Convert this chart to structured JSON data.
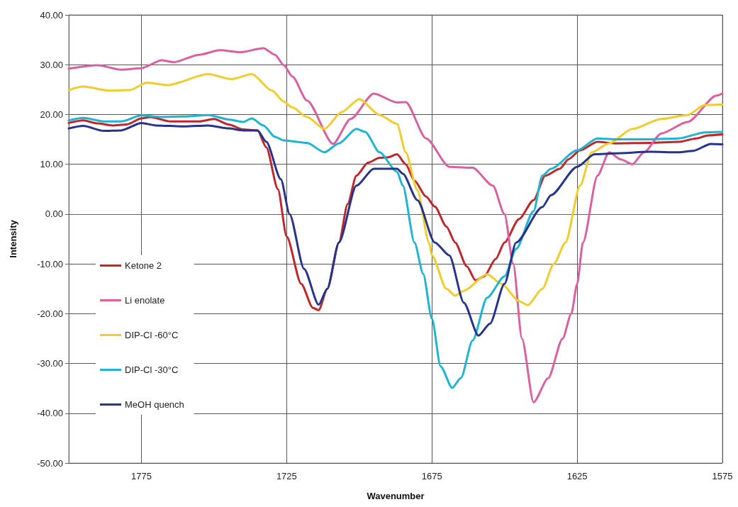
{
  "chart_data": {
    "type": "line",
    "xlabel": "Wavenumber",
    "ylabel": "Intensity",
    "xlim": [
      1800,
      1575
    ],
    "xticks": [
      1775,
      1725,
      1675,
      1625,
      1575
    ],
    "ylim": [
      -50,
      40
    ],
    "yticks": [
      {
        "value": -50,
        "label": "-50.00"
      },
      {
        "value": -40,
        "label": "-40.00"
      },
      {
        "value": -30,
        "label": "-30.00"
      },
      {
        "value": -20,
        "label": "-20.00"
      },
      {
        "value": -10,
        "label": "-10.00"
      },
      {
        "value": 0,
        "label": "0.00"
      },
      {
        "value": 10,
        "label": "10.00"
      },
      {
        "value": 20,
        "label": "20.00"
      },
      {
        "value": 30,
        "label": "30.00"
      },
      {
        "value": 40,
        "label": "40.00"
      }
    ],
    "grid": true,
    "legend": "bottom left",
    "marker": "none",
    "line_style": "solid",
    "series": [
      {
        "name": "Ketone 2",
        "color": "#c0272d",
        "x": [
          1800,
          1795,
          1790,
          1785,
          1780,
          1775,
          1772,
          1765,
          1755,
          1750,
          1745,
          1740,
          1735,
          1732,
          1728,
          1725,
          1720,
          1716,
          1714,
          1711,
          1707,
          1704,
          1701,
          1697,
          1693,
          1690,
          1687,
          1684,
          1681,
          1677,
          1674,
          1670,
          1667,
          1663,
          1660,
          1657,
          1653,
          1650,
          1645,
          1640,
          1636,
          1631,
          1628,
          1624,
          1618,
          1612,
          1600,
          1590,
          1584,
          1580,
          1575
        ],
        "values": [
          18.3,
          18.8,
          18.2,
          17.8,
          18.0,
          19.2,
          19.5,
          18.6,
          18.6,
          19.1,
          18.0,
          17.0,
          16.8,
          13.4,
          5,
          -4.5,
          -14,
          -18.8,
          -19.3,
          -15,
          -5.7,
          2,
          7.7,
          10.3,
          11.3,
          11.4,
          12,
          10,
          6.7,
          3.5,
          1.5,
          -2.5,
          -5.7,
          -10.5,
          -13.3,
          -12.5,
          -9,
          -5.7,
          -1,
          2.8,
          7.7,
          9.1,
          11,
          12.8,
          14.5,
          14.2,
          14.3,
          14.5,
          15.2,
          15.8,
          16.0
        ]
      },
      {
        "name": "Li enolate",
        "color": "#d9619f",
        "x": [
          1800,
          1790,
          1782,
          1775,
          1768,
          1764,
          1755,
          1748,
          1741,
          1733,
          1729,
          1726,
          1723,
          1718,
          1709,
          1703,
          1695,
          1687,
          1684,
          1677,
          1669,
          1661,
          1654,
          1650,
          1647,
          1644,
          1640,
          1635,
          1630,
          1627,
          1625,
          1623,
          1618,
          1614,
          1610,
          1606,
          1602,
          1596,
          1587,
          1577,
          1575
        ],
        "values": [
          29.2,
          29.9,
          29.0,
          29.3,
          30.9,
          30.5,
          32,
          32.9,
          32.5,
          33.3,
          32,
          29.9,
          27.6,
          22.8,
          14.1,
          19.1,
          24.2,
          22.4,
          22.5,
          15.2,
          9.5,
          9.3,
          5.7,
          0,
          -10,
          -25,
          -37.8,
          -33,
          -25,
          -20,
          -14,
          -5.7,
          7.7,
          12.4,
          11,
          10,
          12.4,
          16.2,
          18.5,
          23.8,
          24.2
        ]
      },
      {
        "name": "DIP-Cl -60°C",
        "color": "#f0cc2e",
        "x": [
          1800,
          1795,
          1786,
          1779,
          1773,
          1766,
          1752,
          1744,
          1737,
          1730,
          1726,
          1723,
          1718,
          1712,
          1706,
          1700,
          1693,
          1687,
          1684,
          1680,
          1676,
          1675,
          1670,
          1667,
          1664,
          1656,
          1651,
          1645,
          1642,
          1637,
          1633,
          1629,
          1624,
          1620,
          1614,
          1606,
          1596,
          1587,
          1581,
          1575
        ],
        "values": [
          24.9,
          25.6,
          24.8,
          24.9,
          26.4,
          25.9,
          28.1,
          27.1,
          28.1,
          24.8,
          22.6,
          21.4,
          19.5,
          17.1,
          20.5,
          23.1,
          19.9,
          18.1,
          12.4,
          4.8,
          -5.7,
          -8.3,
          -15,
          -16.4,
          -15.4,
          -12.1,
          -14,
          -17.5,
          -18.3,
          -15,
          -10,
          -5.7,
          5.7,
          12.4,
          14.2,
          17.1,
          19.1,
          19.9,
          21.9,
          22
        ]
      },
      {
        "name": "DIP-Cl -30°C",
        "color": "#1fb4d2",
        "x": [
          1800,
          1795,
          1788,
          1782,
          1775,
          1768,
          1760,
          1752,
          1745,
          1740,
          1737,
          1733,
          1729,
          1726,
          1718,
          1712,
          1707,
          1701,
          1698,
          1693,
          1687,
          1685,
          1681,
          1678,
          1675,
          1672,
          1668,
          1665,
          1661,
          1656,
          1650,
          1646,
          1640,
          1637,
          1634,
          1625,
          1618,
          1612,
          1600,
          1590,
          1581,
          1575
        ],
        "values": [
          18.8,
          19.3,
          18.6,
          18.6,
          19.8,
          19.5,
          19.6,
          19.9,
          19.0,
          18.5,
          19.2,
          17.8,
          15.5,
          14.8,
          14.3,
          12.4,
          14.2,
          17.1,
          16.5,
          12.4,
          8.5,
          5.7,
          -5.7,
          -12,
          -21,
          -30.6,
          -34.9,
          -32.9,
          -25.4,
          -16.8,
          -12.5,
          -7,
          0.6,
          7.7,
          9.1,
          12.8,
          15.2,
          15.0,
          15.0,
          15.2,
          16.4,
          16.5
        ]
      },
      {
        "name": "MeOH quench",
        "color": "#26358a",
        "x": [
          1800,
          1795,
          1788,
          1782,
          1775,
          1770,
          1760,
          1752,
          1745,
          1740,
          1735,
          1732,
          1727,
          1724,
          1719,
          1714,
          1711,
          1707,
          1701,
          1695,
          1687,
          1685,
          1680,
          1674,
          1669,
          1664,
          1659,
          1655,
          1650,
          1646,
          1637,
          1634,
          1625,
          1619,
          1612,
          1600,
          1590,
          1585,
          1579,
          1575
        ],
        "values": [
          17.2,
          17.7,
          16.7,
          16.8,
          18.3,
          17.8,
          17.6,
          17.8,
          17.2,
          16.8,
          16.8,
          14.5,
          7,
          0,
          -11,
          -18.2,
          -15,
          -5.7,
          5.7,
          9.1,
          9.1,
          8.1,
          2.8,
          -5.7,
          -8.3,
          -17.8,
          -24.4,
          -22,
          -14,
          -5.7,
          1.4,
          3.8,
          9.5,
          12,
          12.2,
          12.5,
          12.4,
          12.7,
          14.1,
          14.0
        ]
      }
    ]
  }
}
